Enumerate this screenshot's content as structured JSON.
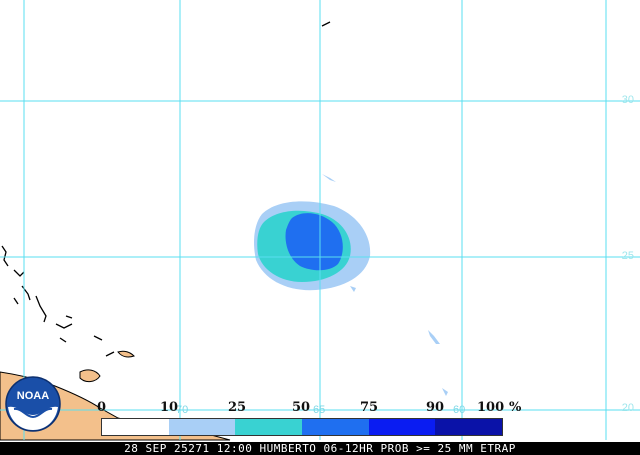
{
  "map": {
    "lat_labels": [
      "30",
      "25",
      "20"
    ],
    "lon_labels": [
      "70",
      "65",
      "60"
    ],
    "colors": {
      "grid": "#59dff0",
      "land_fill": "#f3c08b",
      "coast": "#000000",
      "band_10_25": "#a9cff6",
      "band_25_50": "#39d2d2",
      "band_50_75": "#1f6ff0",
      "band_75_90": "#0a1cf2",
      "band_90_100": "#0a12a8"
    }
  },
  "legend": {
    "ticks": [
      "0",
      "10",
      "25",
      "50",
      "75",
      "90",
      "100"
    ],
    "percent": "%",
    "segment_colors": [
      "#ffffff",
      "#a9cff6",
      "#39d2d2",
      "#1f6ff0",
      "#0a1cf2",
      "#0a12a8"
    ]
  },
  "logo": {
    "text": "NOAA",
    "icon": "noaa-logo-icon"
  },
  "footer": {
    "text": "28 SEP 25271 12:00 HUMBERTO 06-12HR PROB >= 25 MM ETRAP"
  }
}
